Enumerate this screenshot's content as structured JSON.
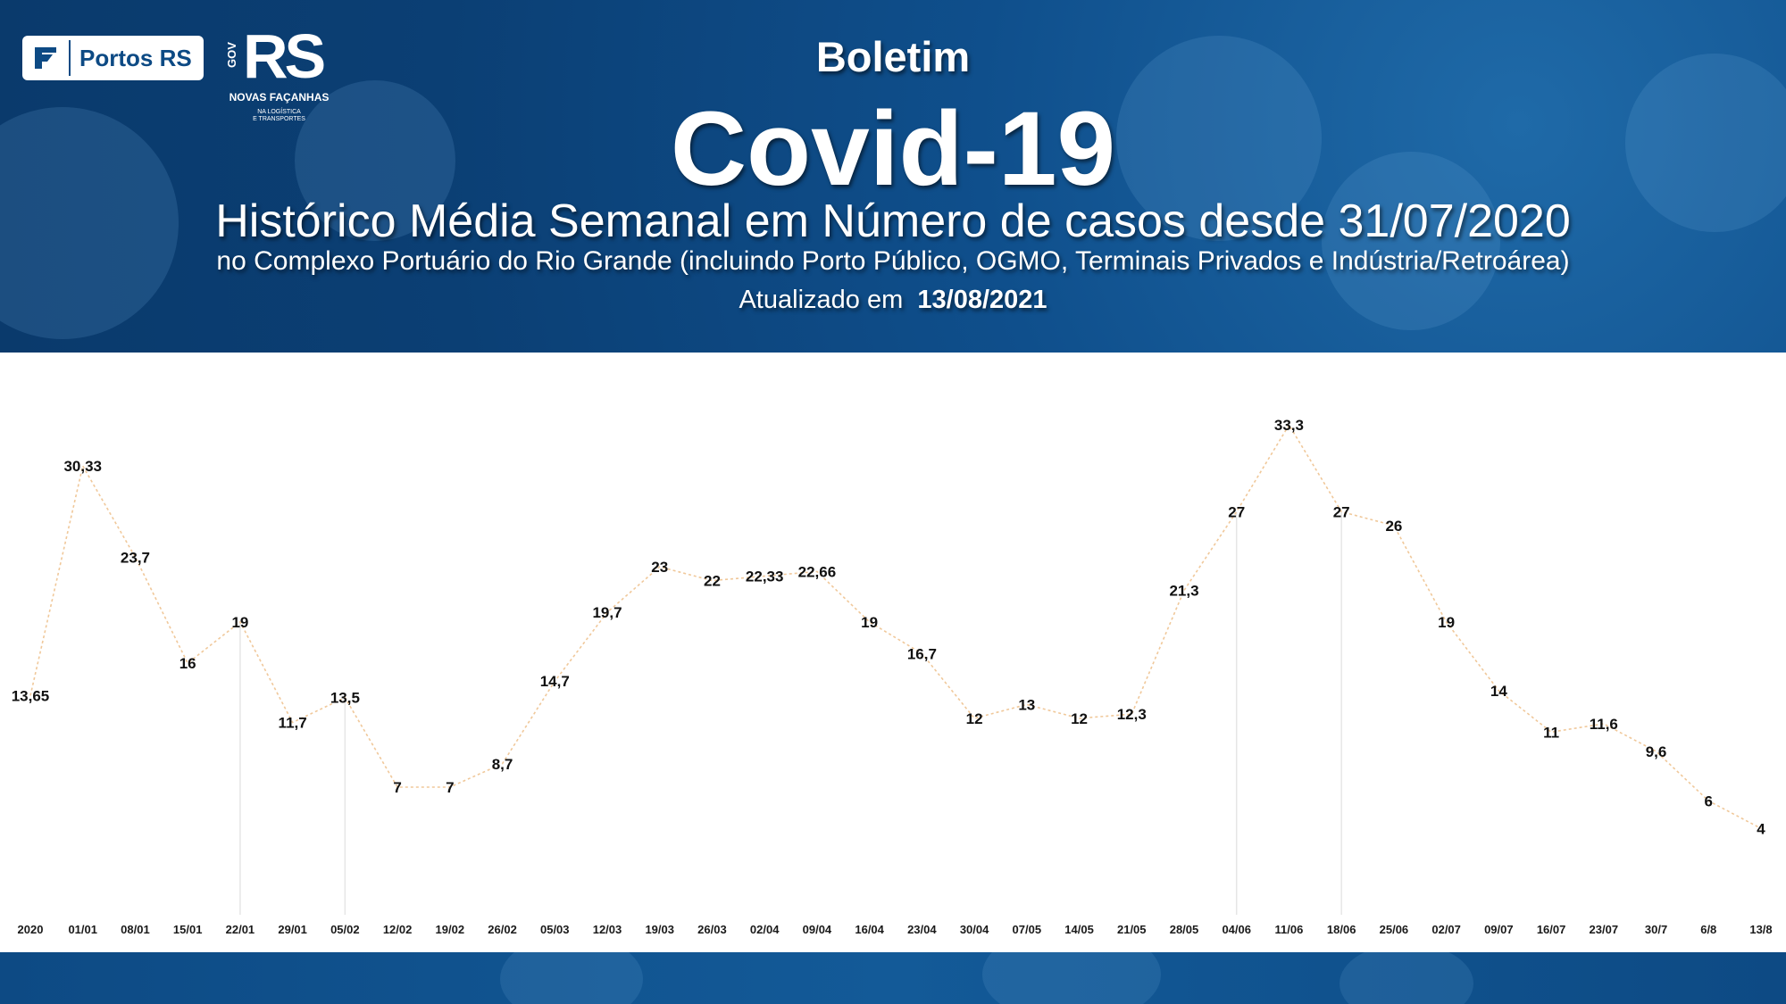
{
  "header": {
    "logo_portos_text": "Portos RS",
    "logo_gov_text": "GOV",
    "logo_rs_text": "RS",
    "logo_subtitle": "NOVAS FAÇANHAS",
    "logo_subtitle2_line1": "NA LOGÍSTICA",
    "logo_subtitle2_line2": "E TRANSPORTES",
    "kicker": "Boletim",
    "title": "Covid-19",
    "subtitle": "Histórico Média Semanal em Número de casos desde 31/07/2020",
    "subtitle2": "no Complexo Portuário do Rio Grande (incluindo Porto Público, OGMO, Terminais Privados e Indústria/Retroárea)",
    "updated_label": "Atualizado em",
    "updated_date": "13/08/2021"
  },
  "colors": {
    "header_blue": "#0b3f74",
    "line": "#f0c89a",
    "drop_line": "#e6e6e6",
    "label": "#111111"
  },
  "chart_data": {
    "type": "line",
    "categories": [
      "2020",
      "01/01",
      "08/01",
      "15/01",
      "22/01",
      "29/01",
      "05/02",
      "12/02",
      "19/02",
      "26/02",
      "05/03",
      "12/03",
      "19/03",
      "26/03",
      "02/04",
      "09/04",
      "16/04",
      "23/04",
      "30/04",
      "07/05",
      "14/05",
      "21/05",
      "28/05",
      "04/06",
      "11/06",
      "18/06",
      "25/06",
      "02/07",
      "09/07",
      "16/07",
      "23/07",
      "30/7",
      "6/8",
      "13/8"
    ],
    "values": [
      13.65,
      30.33,
      23.7,
      16,
      19,
      11.7,
      13.5,
      7,
      7,
      8.7,
      14.7,
      19.7,
      23,
      22,
      22.33,
      22.66,
      19,
      16.7,
      12,
      13,
      12,
      12.3,
      21.3,
      27,
      33.3,
      27,
      26,
      19,
      14,
      11,
      11.6,
      9.6,
      6,
      4
    ],
    "labels": [
      "13,65",
      "30,33",
      "23,7",
      "16",
      "19",
      "11,7",
      "13,5",
      "7",
      "7",
      "8,7",
      "14,7",
      "19,7",
      "23",
      "22",
      "22,33",
      "22,66",
      "19",
      "16,7",
      "12",
      "13",
      "12",
      "12,3",
      "21,3",
      "27",
      "33,3",
      "27",
      "26",
      "19",
      "14",
      "11",
      "11,6",
      "9,6",
      "6",
      "4"
    ],
    "drop_lines_at": [
      "22/01",
      "05/02",
      "04/06",
      "18/06"
    ],
    "ylim": [
      0,
      35
    ],
    "grid": false,
    "legend": "none"
  }
}
